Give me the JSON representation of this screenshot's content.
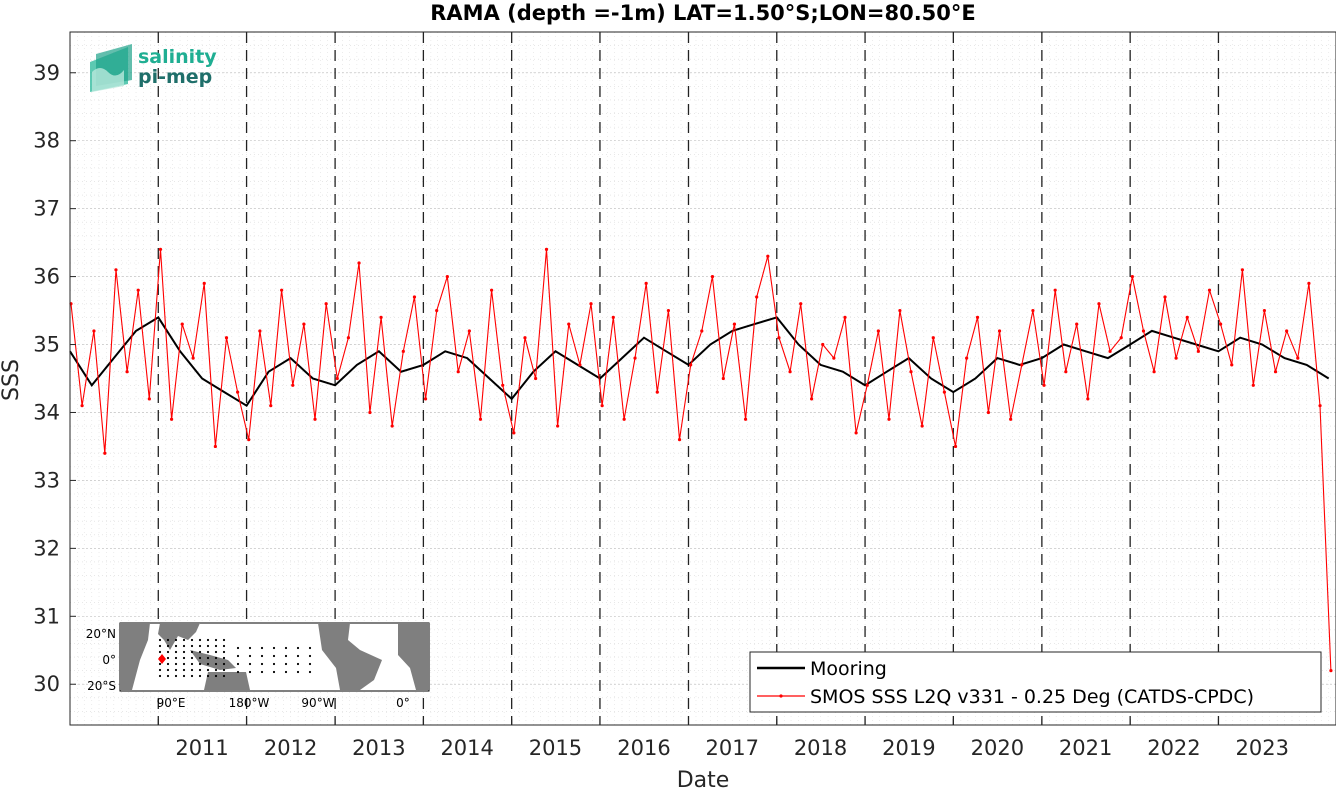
{
  "chart_data": {
    "type": "line",
    "title": "RAMA (depth =-1m) LAT=1.50°S;LON=80.50°E",
    "xlabel": "Date",
    "ylabel": "SSS",
    "xlim": [
      "2010-01-01",
      "2024-05-01"
    ],
    "ylim": [
      29.4,
      39.6
    ],
    "yticks": [
      30,
      31,
      32,
      33,
      34,
      35,
      36,
      37,
      38,
      39
    ],
    "xticks": [
      "2011",
      "2012",
      "2013",
      "2014",
      "2015",
      "2016",
      "2017",
      "2018",
      "2019",
      "2020",
      "2021",
      "2022",
      "2023"
    ],
    "year_boundaries": [
      "2011-01-01",
      "2012-01-01",
      "2013-01-01",
      "2014-01-01",
      "2015-01-01",
      "2016-01-01",
      "2017-01-01",
      "2018-01-01",
      "2019-01-01",
      "2020-01-01",
      "2021-01-01",
      "2022-01-01",
      "2023-01-01"
    ],
    "grid": true,
    "legend_position": "bottom-right",
    "series": [
      {
        "name": "Mooring",
        "color": "#000000",
        "x": [
          "2010-01-01",
          "2010-04-01",
          "2010-07-01",
          "2010-10-01",
          "2011-01-01",
          "2011-04-01",
          "2011-07-01",
          "2011-10-01",
          "2012-01-01",
          "2012-04-01",
          "2012-07-01",
          "2012-10-01",
          "2013-01-01",
          "2013-04-01",
          "2013-07-01",
          "2013-10-01",
          "2014-01-01",
          "2014-04-01",
          "2014-07-01",
          "2014-10-01",
          "2015-01-01",
          "2015-04-01",
          "2015-07-01",
          "2015-10-01",
          "2016-01-01",
          "2016-04-01",
          "2016-07-01",
          "2016-10-01",
          "2017-01-01",
          "2017-04-01",
          "2017-07-01",
          "2017-10-01",
          "2018-01-01",
          "2018-04-01",
          "2018-07-01",
          "2018-10-01",
          "2019-01-01",
          "2019-04-01",
          "2019-07-01",
          "2019-10-01",
          "2020-01-01",
          "2020-04-01",
          "2020-07-01",
          "2020-10-01",
          "2021-01-01",
          "2021-04-01",
          "2021-07-01",
          "2021-10-01",
          "2022-01-01",
          "2022-04-01",
          "2022-07-01",
          "2022-10-01",
          "2023-01-01",
          "2023-04-01",
          "2023-07-01",
          "2023-10-01",
          "2024-01-01",
          "2024-04-01"
        ],
        "y": [
          34.9,
          34.4,
          34.8,
          35.2,
          35.4,
          34.9,
          34.5,
          34.3,
          34.1,
          34.6,
          34.8,
          34.5,
          34.4,
          34.7,
          34.9,
          34.6,
          34.7,
          34.9,
          34.8,
          34.5,
          34.2,
          34.6,
          34.9,
          34.7,
          34.5,
          34.8,
          35.1,
          34.9,
          34.7,
          35.0,
          35.2,
          35.3,
          35.4,
          35.0,
          34.7,
          34.6,
          34.4,
          34.6,
          34.8,
          34.5,
          34.3,
          34.5,
          34.8,
          34.7,
          34.8,
          35.0,
          34.9,
          34.8,
          35.0,
          35.2,
          35.1,
          35.0,
          34.9,
          35.1,
          35.0,
          34.8,
          34.7,
          34.5
        ]
      },
      {
        "name": "SMOS SSS L2Q v331 - 0.25 Deg (CATDS-CPDC)",
        "color": "#ff0000",
        "x": [
          "2010-01-05",
          "2010-02-20",
          "2010-04-10",
          "2010-05-25",
          "2010-07-10",
          "2010-08-25",
          "2010-10-10",
          "2010-11-25",
          "2011-01-10",
          "2011-02-25",
          "2011-04-10",
          "2011-05-25",
          "2011-07-10",
          "2011-08-25",
          "2011-10-10",
          "2011-11-25",
          "2012-01-10",
          "2012-02-25",
          "2012-04-10",
          "2012-05-25",
          "2012-07-10",
          "2012-08-25",
          "2012-10-10",
          "2012-11-25",
          "2013-01-10",
          "2013-02-25",
          "2013-04-10",
          "2013-05-25",
          "2013-07-10",
          "2013-08-25",
          "2013-10-10",
          "2013-11-25",
          "2014-01-10",
          "2014-02-25",
          "2014-04-10",
          "2014-05-25",
          "2014-07-10",
          "2014-08-25",
          "2014-10-10",
          "2014-11-25",
          "2015-01-10",
          "2015-02-25",
          "2015-04-10",
          "2015-05-25",
          "2015-07-10",
          "2015-08-25",
          "2015-10-10",
          "2015-11-25",
          "2016-01-10",
          "2016-02-25",
          "2016-04-10",
          "2016-05-25",
          "2016-07-10",
          "2016-08-25",
          "2016-10-10",
          "2016-11-25",
          "2017-01-10",
          "2017-02-25",
          "2017-04-10",
          "2017-05-25",
          "2017-07-10",
          "2017-08-25",
          "2017-10-10",
          "2017-11-25",
          "2018-01-10",
          "2018-02-25",
          "2018-04-10",
          "2018-05-25",
          "2018-07-10",
          "2018-08-25",
          "2018-10-10",
          "2018-11-25",
          "2019-01-10",
          "2019-02-25",
          "2019-04-10",
          "2019-05-25",
          "2019-07-10",
          "2019-08-25",
          "2019-10-10",
          "2019-11-25",
          "2020-01-10",
          "2020-02-25",
          "2020-04-10",
          "2020-05-25",
          "2020-07-10",
          "2020-08-25",
          "2020-10-10",
          "2020-11-25",
          "2021-01-10",
          "2021-02-25",
          "2021-04-10",
          "2021-05-25",
          "2021-07-10",
          "2021-08-25",
          "2021-10-10",
          "2021-11-25",
          "2022-01-10",
          "2022-02-25",
          "2022-04-10",
          "2022-05-25",
          "2022-07-10",
          "2022-08-25",
          "2022-10-10",
          "2022-11-25",
          "2023-01-10",
          "2023-02-25",
          "2023-04-10",
          "2023-05-25",
          "2023-07-10",
          "2023-08-25",
          "2023-10-10",
          "2023-11-25",
          "2024-01-10",
          "2024-02-25",
          "2024-04-10"
        ],
        "y": [
          35.6,
          34.1,
          35.2,
          33.4,
          36.1,
          34.6,
          35.8,
          34.2,
          36.4,
          33.9,
          35.3,
          34.8,
          35.9,
          33.5,
          35.1,
          34.3,
          33.6,
          35.2,
          34.1,
          35.8,
          34.4,
          35.3,
          33.9,
          35.6,
          34.5,
          35.1,
          36.2,
          34.0,
          35.4,
          33.8,
          34.9,
          35.7,
          34.2,
          35.5,
          36.0,
          34.6,
          35.2,
          33.9,
          35.8,
          34.4,
          33.7,
          35.1,
          34.5,
          36.4,
          33.8,
          35.3,
          34.7,
          35.6,
          34.1,
          35.4,
          33.9,
          34.8,
          35.9,
          34.3,
          35.5,
          33.6,
          34.7,
          35.2,
          36.0,
          34.5,
          35.3,
          33.9,
          35.7,
          36.3,
          35.1,
          34.6,
          35.6,
          34.2,
          35.0,
          34.8,
          35.4,
          33.7,
          34.4,
          35.2,
          33.9,
          35.5,
          34.6,
          33.8,
          35.1,
          34.3,
          33.5,
          34.8,
          35.4,
          34.0,
          35.2,
          33.9,
          34.7,
          35.5,
          34.4,
          35.8,
          34.6,
          35.3,
          34.2,
          35.6,
          34.9,
          35.1,
          36.0,
          35.2,
          34.6,
          35.7,
          34.8,
          35.4,
          34.9,
          35.8,
          35.3,
          34.7,
          36.1,
          34.4,
          35.5,
          34.6,
          35.2,
          34.8,
          35.9,
          34.1,
          30.2
        ]
      }
    ],
    "legend": {
      "items": [
        "Mooring",
        "SMOS SSS L2Q v331 - 0.25 Deg (CATDS-CPDC)"
      ]
    }
  },
  "logo": {
    "line1": "salinity",
    "line2": "pi-mep"
  },
  "inset_map": {
    "lat_labels": [
      "20°N",
      "0°",
      "20°S"
    ],
    "lon_labels": [
      "90°E",
      "180°W",
      "90°W",
      "0°"
    ]
  }
}
